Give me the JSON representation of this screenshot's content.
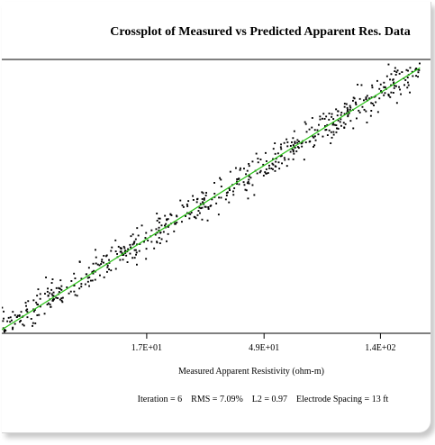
{
  "chart_data": {
    "type": "scatter",
    "title": "Crossplot of Measured vs Predicted Apparent Res. Data",
    "xlabel": "Measured Apparent Resistivity (ohm-m)",
    "ylabel": "",
    "x_scale": "log",
    "y_scale": "log",
    "xlim": [
      4.6,
      220
    ],
    "ylim": [
      4.6,
      220
    ],
    "x_ticks": [
      {
        "value": 17,
        "label": "1.7E+01"
      },
      {
        "value": 49,
        "label": "4.9E+01"
      },
      {
        "value": 140,
        "label": "1.4E+02"
      }
    ],
    "grid": false,
    "legend": "none",
    "series": [
      {
        "kind": "points",
        "color": "#000000",
        "n_points": 620,
        "x_range": [
          4.6,
          200
        ],
        "relative_scatter": 0.12
      },
      {
        "kind": "line",
        "color": "#2fc41c",
        "x": [
          4.6,
          200
        ],
        "y": [
          4.6,
          200
        ]
      }
    ],
    "footer": "Iteration = 6    RMS = 7.09%    L2 = 0.97    Electrode Spacing = 13 ft"
  }
}
